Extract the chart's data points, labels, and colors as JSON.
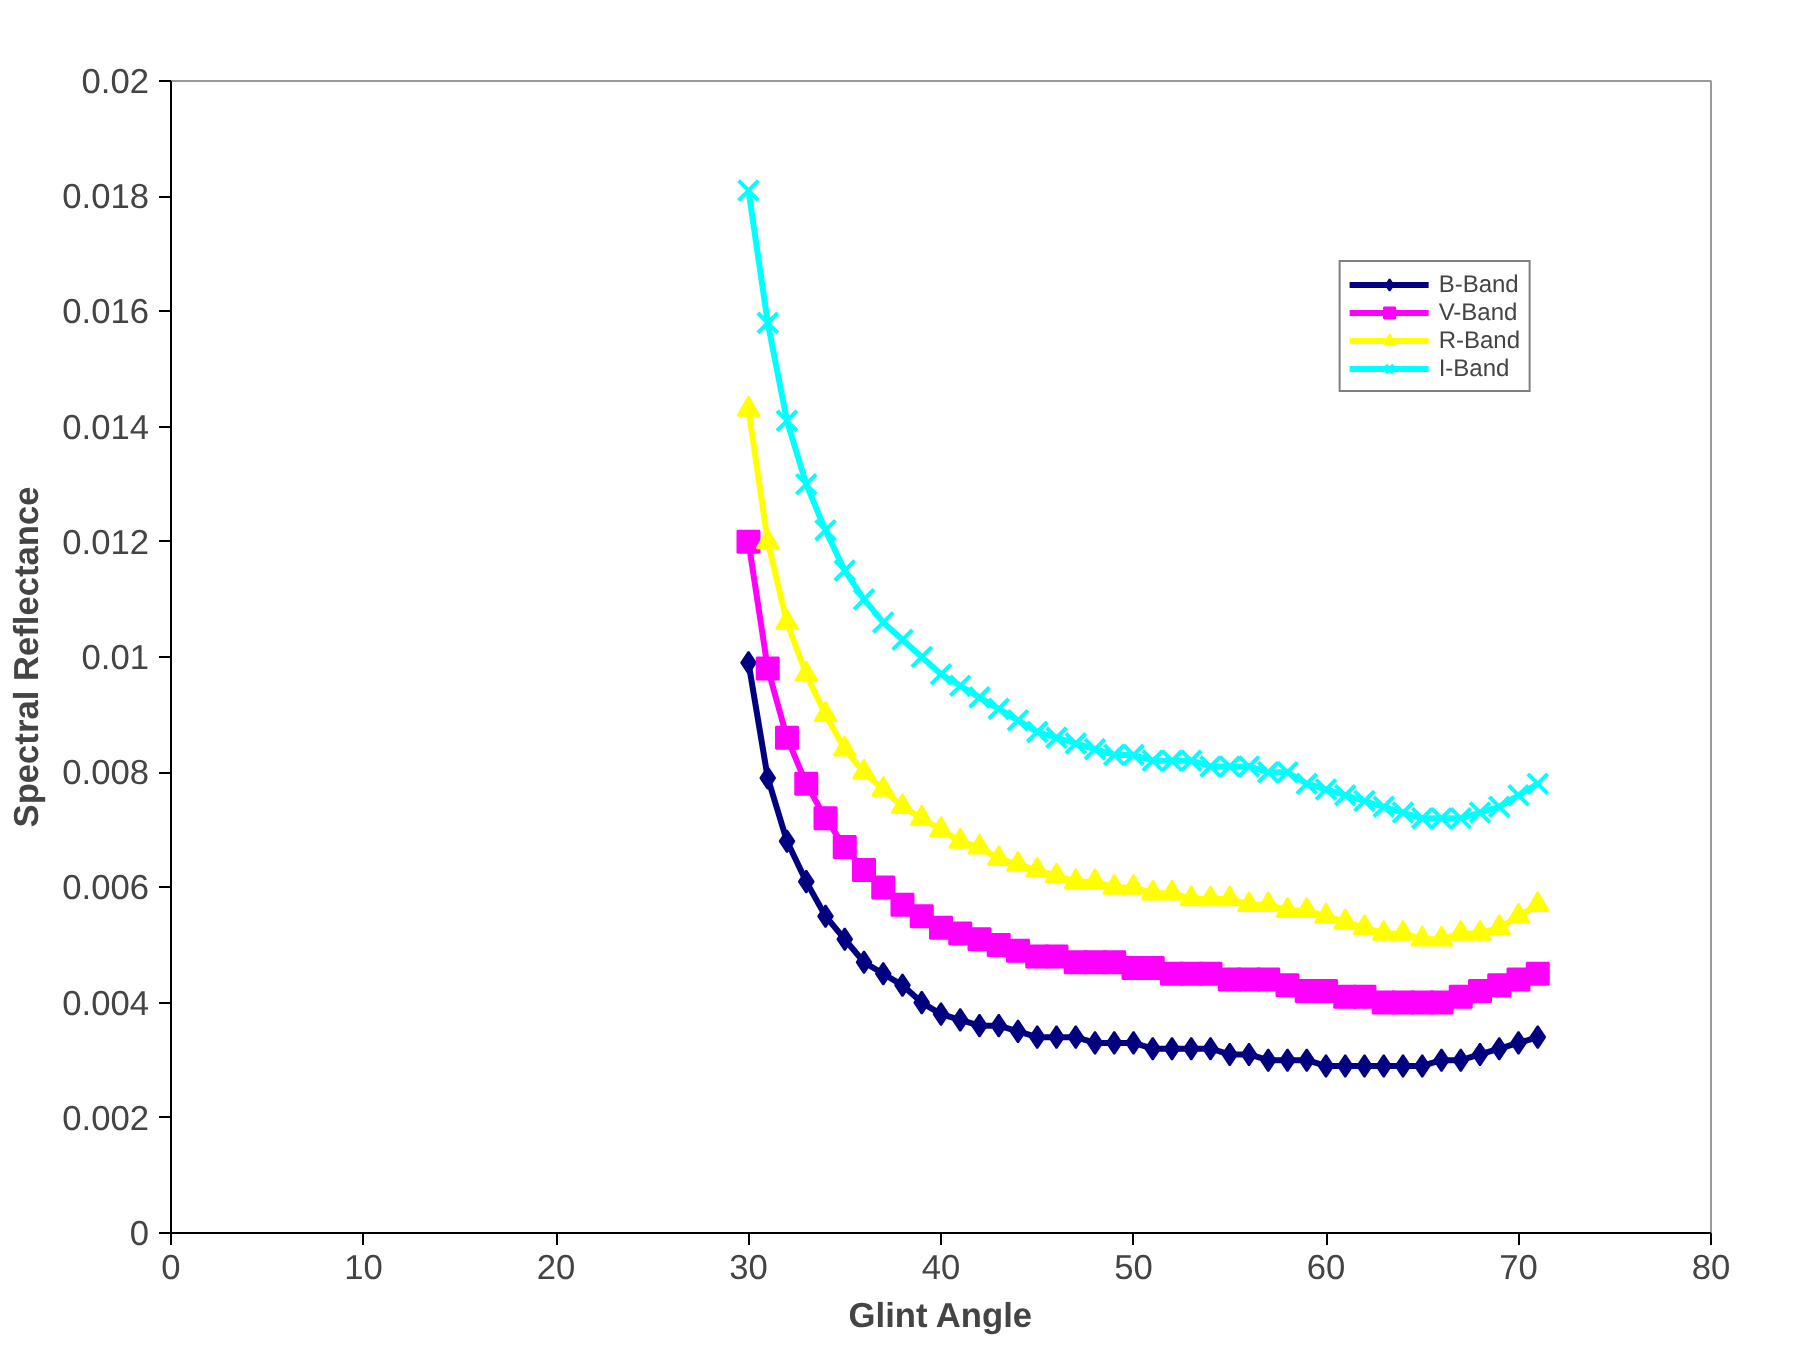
{
  "chart_data": {
    "type": "line",
    "xlabel": "Glint Angle",
    "ylabel": "Spectral Reflectance",
    "x": [
      30,
      31,
      32,
      33,
      34,
      35,
      36,
      37,
      38,
      39,
      40,
      41,
      42,
      43,
      44,
      45,
      46,
      47,
      48,
      49,
      50,
      51,
      52,
      53,
      54,
      55,
      56,
      57,
      58,
      59,
      60,
      61,
      62,
      63,
      64,
      65,
      66,
      67,
      68,
      69,
      70,
      71
    ],
    "series": [
      {
        "name": "B-Band",
        "color": "#000080",
        "marker": "diamond",
        "values": [
          0.0099,
          0.0079,
          0.0068,
          0.0061,
          0.0055,
          0.0051,
          0.0047,
          0.0045,
          0.0043,
          0.004,
          0.0038,
          0.0037,
          0.0036,
          0.0036,
          0.0035,
          0.0034,
          0.0034,
          0.0034,
          0.0033,
          0.0033,
          0.0033,
          0.0032,
          0.0032,
          0.0032,
          0.0032,
          0.0031,
          0.0031,
          0.003,
          0.003,
          0.003,
          0.0029,
          0.0029,
          0.0029,
          0.0029,
          0.0029,
          0.0029,
          0.003,
          0.003,
          0.0031,
          0.0032,
          0.0033,
          0.0034
        ]
      },
      {
        "name": "V-Band",
        "color": "#ff00ff",
        "marker": "square",
        "values": [
          0.012,
          0.0098,
          0.0086,
          0.0078,
          0.0072,
          0.0067,
          0.0063,
          0.006,
          0.0057,
          0.0055,
          0.0053,
          0.0052,
          0.0051,
          0.005,
          0.0049,
          0.0048,
          0.0048,
          0.0047,
          0.0047,
          0.0047,
          0.0046,
          0.0046,
          0.0045,
          0.0045,
          0.0045,
          0.0044,
          0.0044,
          0.0044,
          0.0043,
          0.0042,
          0.0042,
          0.0041,
          0.0041,
          0.004,
          0.004,
          0.004,
          0.004,
          0.0041,
          0.0042,
          0.0043,
          0.0044,
          0.0045
        ]
      },
      {
        "name": "R-Band",
        "color": "#ffff00",
        "marker": "triangle",
        "values": [
          0.0143,
          0.012,
          0.0106,
          0.0097,
          0.009,
          0.0084,
          0.008,
          0.0077,
          0.0074,
          0.0072,
          0.007,
          0.0068,
          0.0067,
          0.0065,
          0.0064,
          0.0063,
          0.0062,
          0.0061,
          0.0061,
          0.006,
          0.006,
          0.0059,
          0.0059,
          0.0058,
          0.0058,
          0.0058,
          0.0057,
          0.0057,
          0.0056,
          0.0056,
          0.0055,
          0.0054,
          0.0053,
          0.0052,
          0.0052,
          0.0051,
          0.0051,
          0.0052,
          0.0052,
          0.0053,
          0.0055,
          0.0057
        ]
      },
      {
        "name": "I-Band",
        "color": "#00ffff",
        "marker": "cross",
        "values": [
          0.0181,
          0.0158,
          0.0141,
          0.013,
          0.0122,
          0.0115,
          0.011,
          0.0106,
          0.0103,
          0.01,
          0.0097,
          0.0095,
          0.0093,
          0.0091,
          0.0089,
          0.0087,
          0.0086,
          0.0085,
          0.0084,
          0.0083,
          0.0083,
          0.0082,
          0.0082,
          0.0082,
          0.0081,
          0.0081,
          0.0081,
          0.008,
          0.008,
          0.0078,
          0.0077,
          0.0076,
          0.0075,
          0.0074,
          0.0073,
          0.0072,
          0.0072,
          0.0072,
          0.0073,
          0.0074,
          0.0076,
          0.0078
        ]
      }
    ],
    "xlim": [
      0,
      80
    ],
    "xticks": [
      0,
      10,
      20,
      30,
      40,
      50,
      60,
      70,
      80
    ],
    "ylim": [
      0,
      0.02
    ],
    "yticks": [
      0,
      0.002,
      0.004,
      0.006,
      0.008,
      0.01,
      0.012,
      0.014,
      0.016,
      0.018,
      0.02
    ],
    "grid": false,
    "legend": "top right",
    "line_style": "solid"
  }
}
